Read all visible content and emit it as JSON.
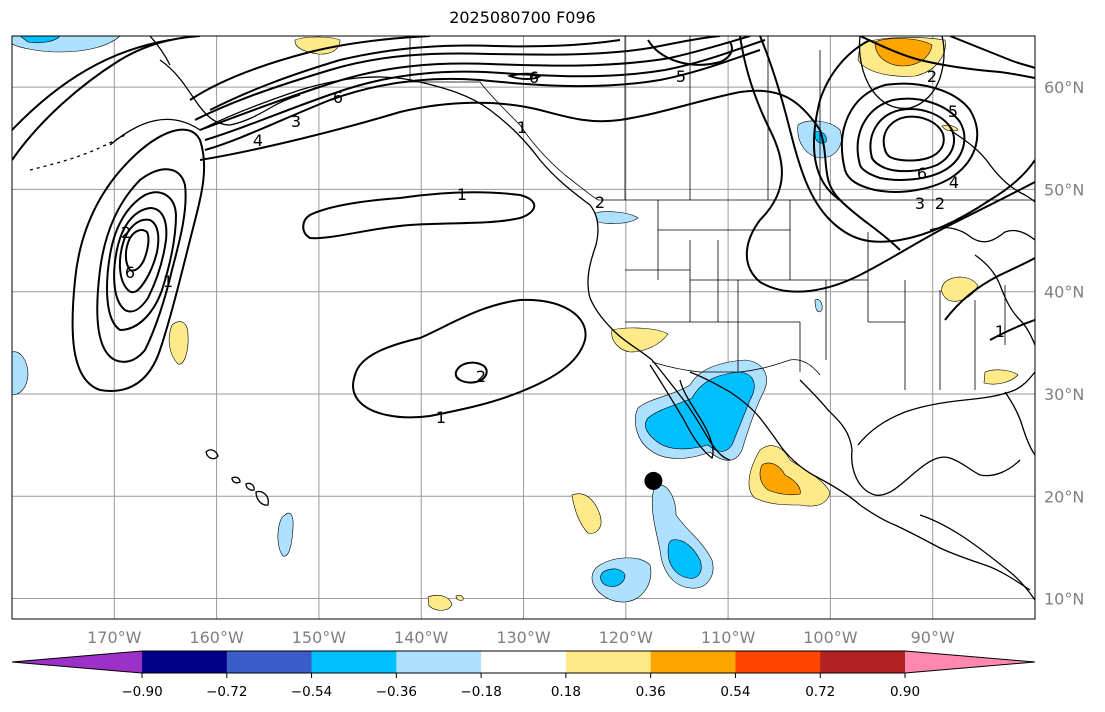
{
  "title": "2025080700 F096",
  "map": {
    "projection": "equirectangular",
    "lon_range": [
      -180,
      -80
    ],
    "lat_range": [
      8,
      65
    ],
    "grid": true,
    "lat_ticks": [
      "60°N",
      "50°N",
      "40°N",
      "30°N",
      "20°N",
      "10°N"
    ],
    "lon_ticks": [
      "170°W",
      "160°W",
      "150°W",
      "140°W",
      "130°W",
      "120°W",
      "110°W",
      "100°W",
      "90°W"
    ],
    "contour_labels": [
      "6",
      "4",
      "3",
      "6",
      "5",
      "1",
      "1",
      "1",
      "2",
      "2",
      "5",
      "6",
      "4",
      "3",
      "2",
      "2",
      "6",
      "1",
      "2",
      "1"
    ],
    "marker": {
      "lon": -117.3,
      "lat": 21.5,
      "color": "#000000"
    }
  },
  "colorbar": {
    "colors": [
      "#9c30c8",
      "#000088",
      "#3a5dc8",
      "#00bfff",
      "#aee0ff",
      "#ffffff",
      "#ffea8a",
      "#ffa500",
      "#ff4500",
      "#b22222",
      "#ff88b0"
    ],
    "tick_labels": [
      "−0.90",
      "−0.72",
      "−0.54",
      "−0.36",
      "−0.18",
      "0.18",
      "0.36",
      "0.54",
      "0.72",
      "0.90"
    ]
  }
}
